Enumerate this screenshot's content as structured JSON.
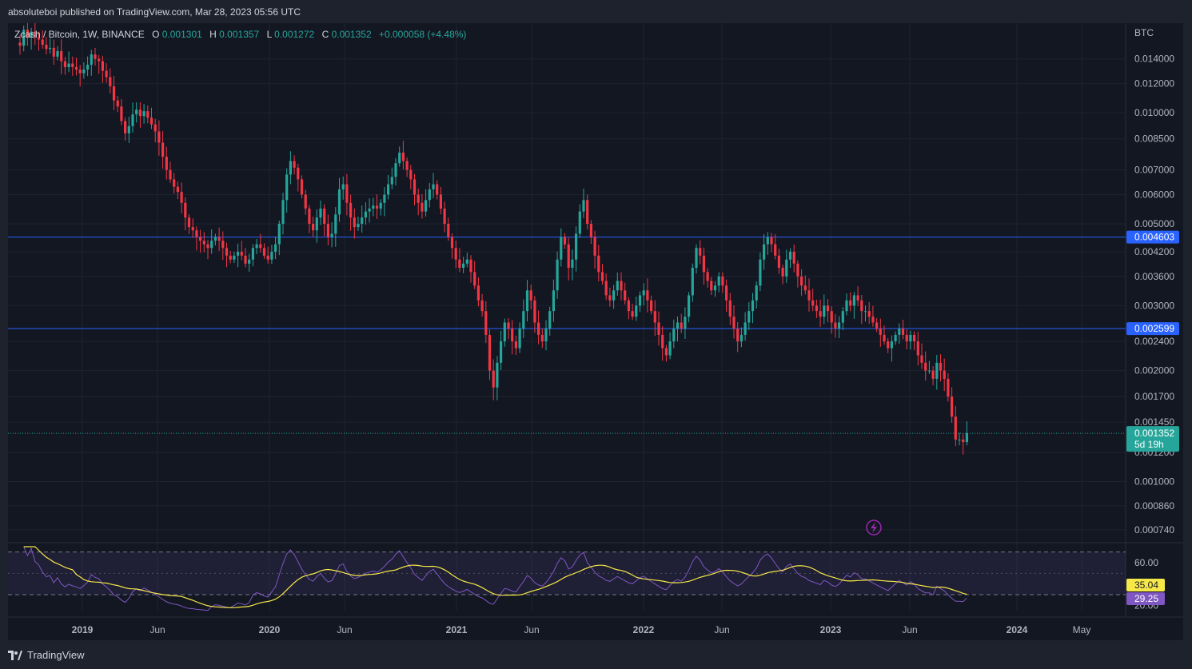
{
  "header": {
    "published": "absoluteboi published on TradingView.com, Mar 28, 2023 05:56 UTC"
  },
  "legend": {
    "symbol": "Zcash / Bitcoin, 1W, BINANCE",
    "o_label": "O",
    "o_value": "0.001301",
    "h_label": "H",
    "h_value": "0.001357",
    "l_label": "L",
    "l_value": "0.001272",
    "c_label": "C",
    "c_value": "0.001352",
    "change": "+0.000058 (+4.48%)"
  },
  "footer": {
    "brand": "TradingView"
  },
  "colors": {
    "bg": "#131722",
    "frame": "#1e222d",
    "up": "#26a69a",
    "down": "#f23645",
    "level": "#2962ff",
    "rsi": "#7e57c2",
    "rsi_ma": "#f7e84a",
    "text": "#b2b5be",
    "grid": "#1f2330"
  },
  "chart_data": [
    {
      "type": "candlestick",
      "unit": "BTC",
      "scale": "log",
      "ylim": [
        0.0007,
        0.0175
      ],
      "price_ticks": [
        "0.014000",
        "0.012000",
        "0.010000",
        "0.008500",
        "0.007000",
        "0.006000",
        "0.005000",
        "0.004200",
        "0.003600",
        "0.003000",
        "0.002400",
        "0.002000",
        "0.001700",
        "0.001450",
        "0.001200",
        "0.001000",
        "0.000860",
        "0.000740"
      ],
      "time_labels": [
        "2019",
        "Jun",
        "2020",
        "Jun",
        "2021",
        "Jun",
        "2022",
        "Jun",
        "2023",
        "Jun",
        "2024",
        "May"
      ],
      "time_label_bold": [
        true,
        false,
        true,
        false,
        true,
        false,
        true,
        false,
        true,
        false,
        true,
        false
      ],
      "horizontal_levels": [
        {
          "value": 0.004603,
          "label": "0.004603"
        },
        {
          "value": 0.002599,
          "label": "0.002599"
        }
      ],
      "last_price": {
        "value": 0.001352,
        "label": "0.001352",
        "countdown": "5d 19h"
      },
      "weekly_close": [
        0.0152,
        0.0168,
        0.016,
        0.0166,
        0.016,
        0.0158,
        0.0153,
        0.0149,
        0.015,
        0.0142,
        0.0147,
        0.0138,
        0.0133,
        0.0136,
        0.0133,
        0.0131,
        0.0128,
        0.0131,
        0.0135,
        0.0144,
        0.014,
        0.0138,
        0.013,
        0.0125,
        0.0118,
        0.0108,
        0.0104,
        0.0095,
        0.0088,
        0.0092,
        0.0099,
        0.0102,
        0.0098,
        0.0101,
        0.0097,
        0.0093,
        0.0089,
        0.0083,
        0.0076,
        0.007,
        0.0066,
        0.0063,
        0.0061,
        0.0057,
        0.0052,
        0.0049,
        0.0048,
        0.0046,
        0.0045,
        0.0044,
        0.0043,
        0.0045,
        0.0046,
        0.0045,
        0.0043,
        0.0041,
        0.004,
        0.0041,
        0.0042,
        0.0041,
        0.0039,
        0.004,
        0.0043,
        0.0044,
        0.0043,
        0.0041,
        0.004,
        0.0042,
        0.0044,
        0.005,
        0.0058,
        0.0068,
        0.0074,
        0.0071,
        0.0066,
        0.006,
        0.0055,
        0.005,
        0.0048,
        0.0052,
        0.0055,
        0.005,
        0.0046,
        0.0047,
        0.0053,
        0.0062,
        0.0064,
        0.0057,
        0.0052,
        0.0049,
        0.005,
        0.0052,
        0.0054,
        0.0055,
        0.0056,
        0.0055,
        0.0057,
        0.006,
        0.0064,
        0.0067,
        0.0073,
        0.0078,
        0.0074,
        0.007,
        0.0066,
        0.006,
        0.0057,
        0.0054,
        0.0058,
        0.0062,
        0.0064,
        0.006,
        0.0055,
        0.005,
        0.0046,
        0.0043,
        0.004,
        0.0038,
        0.0039,
        0.004,
        0.0037,
        0.0034,
        0.0031,
        0.0029,
        0.0025,
        0.002,
        0.0018,
        0.0021,
        0.0024,
        0.0027,
        0.0026,
        0.0024,
        0.0023,
        0.0026,
        0.0029,
        0.0033,
        0.0031,
        0.0027,
        0.0025,
        0.0024,
        0.0026,
        0.0029,
        0.0033,
        0.004,
        0.0046,
        0.0044,
        0.0038,
        0.004,
        0.0047,
        0.0054,
        0.0058,
        0.005,
        0.0046,
        0.0041,
        0.0037,
        0.0035,
        0.0032,
        0.0031,
        0.0033,
        0.0035,
        0.0033,
        0.0031,
        0.0029,
        0.0028,
        0.003,
        0.0032,
        0.0033,
        0.0031,
        0.0029,
        0.0027,
        0.0025,
        0.0023,
        0.0022,
        0.0024,
        0.0026,
        0.0027,
        0.0026,
        0.0028,
        0.0032,
        0.0038,
        0.0043,
        0.0041,
        0.0037,
        0.0035,
        0.0033,
        0.0034,
        0.0036,
        0.0034,
        0.0031,
        0.0028,
        0.0026,
        0.0024,
        0.0025,
        0.0027,
        0.0029,
        0.0031,
        0.0034,
        0.004,
        0.0044,
        0.0046,
        0.0044,
        0.0041,
        0.0038,
        0.0036,
        0.004,
        0.0042,
        0.0039,
        0.0036,
        0.0034,
        0.0033,
        0.0031,
        0.003,
        0.0029,
        0.0028,
        0.003,
        0.0029,
        0.0027,
        0.0026,
        0.0027,
        0.0029,
        0.0031,
        0.003,
        0.0032,
        0.0031,
        0.0029,
        0.0029,
        0.0028,
        0.0027,
        0.0026,
        0.0025,
        0.0024,
        0.0023,
        0.0024,
        0.0025,
        0.0026,
        0.0025,
        0.0024,
        0.0025,
        0.0024,
        0.0022,
        0.0021,
        0.002,
        0.002,
        0.0019,
        0.0021,
        0.002,
        0.0019,
        0.0017,
        0.0015,
        0.0013,
        0.0013,
        0.00128,
        0.001352
      ]
    },
    {
      "type": "line",
      "name": "RSI",
      "ylim": [
        15,
        75
      ],
      "ticks": [
        "60.00",
        "20.00"
      ],
      "band": [
        30,
        70
      ],
      "rsi_value": "29.25",
      "ma_value": "35.04"
    }
  ]
}
